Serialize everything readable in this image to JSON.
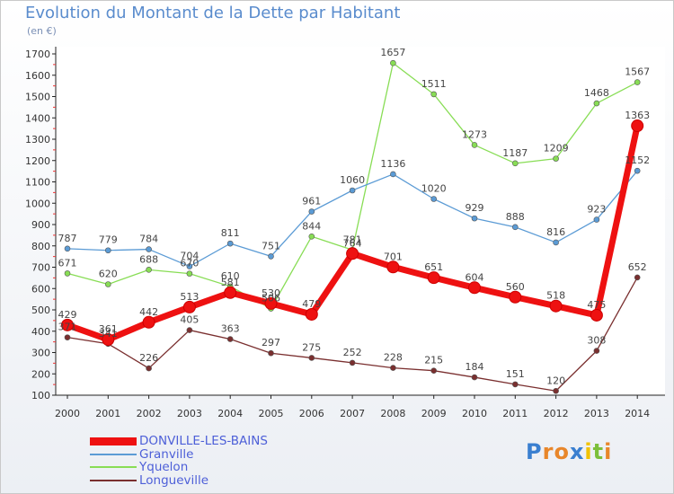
{
  "title": "Evolution du Montant de la Dette par Habitant",
  "subtitle": "(en €)",
  "logo": {
    "text": "Proxiti",
    "letter_colors": [
      "#3a7fd0",
      "#e8862a",
      "#e8862a",
      "#3a7fd0",
      "#f2c200",
      "#7cbf3a",
      "#e8862a"
    ]
  },
  "chart_data": {
    "type": "line",
    "x": [
      2000,
      2001,
      2002,
      2003,
      2004,
      2005,
      2006,
      2007,
      2008,
      2009,
      2010,
      2011,
      2012,
      2013,
      2014
    ],
    "ylim": [
      100,
      1700
    ],
    "yticks": [
      100,
      200,
      300,
      400,
      500,
      600,
      700,
      800,
      900,
      1000,
      1100,
      1200,
      1300,
      1400,
      1500,
      1600,
      1700
    ],
    "grid": false,
    "legend_position": "bottom-left",
    "series": [
      {
        "name": "DONVILLE-LES-BAINS",
        "color": "#ee1111",
        "values": [
          429,
          361,
          442,
          513,
          581,
          530,
          479,
          764,
          701,
          651,
          604,
          560,
          518,
          475,
          1363
        ]
      },
      {
        "name": "Granville",
        "color": "#5b9bd5",
        "values": [
          787,
          779,
          784,
          704,
          811,
          751,
          961,
          1060,
          1136,
          1020,
          929,
          888,
          816,
          923,
          1152
        ]
      },
      {
        "name": "Yquelon",
        "color": "#88dd55",
        "values": [
          671,
          620,
          688,
          670,
          610,
          506,
          844,
          781,
          1657,
          1511,
          1273,
          1187,
          1209,
          1468,
          1567
        ]
      },
      {
        "name": "Longueville",
        "color": "#7a2f2f",
        "values": [
          371,
          341,
          226,
          405,
          363,
          297,
          275,
          252,
          228,
          215,
          184,
          151,
          120,
          308,
          652
        ]
      }
    ]
  }
}
